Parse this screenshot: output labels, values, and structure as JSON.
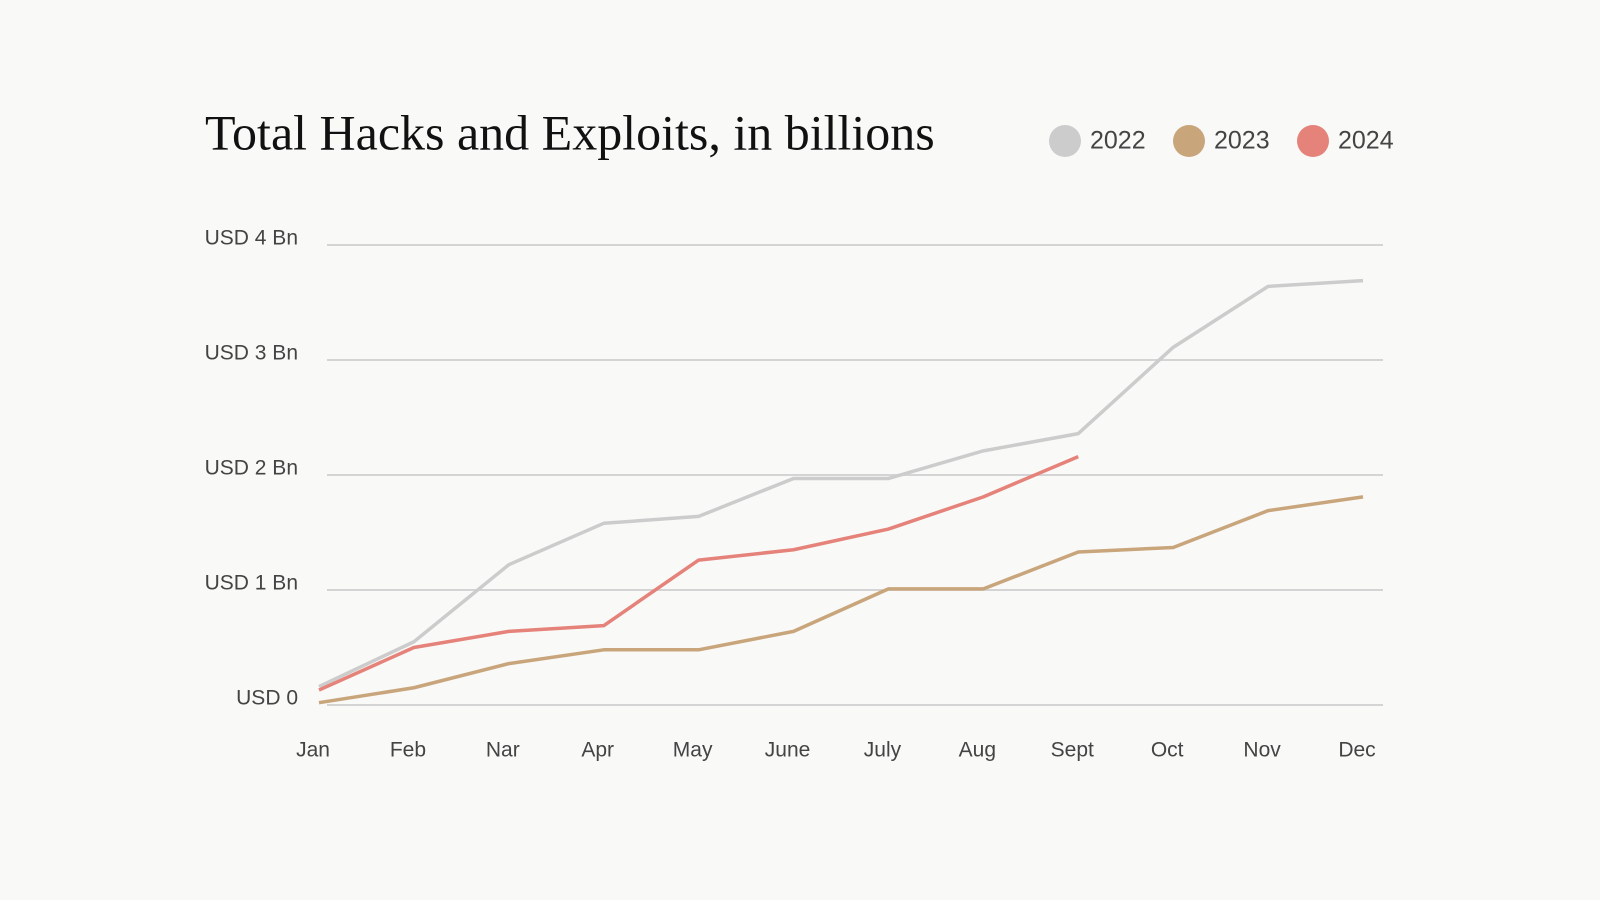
{
  "chart_data": {
    "type": "line",
    "title": "Total Hacks and Exploits, in billions",
    "categories": [
      "Jan",
      "Feb",
      "Nar",
      "Apr",
      "May",
      "June",
      "July",
      "Aug",
      "Sept",
      "Oct",
      "Nov",
      "Dec"
    ],
    "series": [
      {
        "name": "2022",
        "color": "#cccccc",
        "values": [
          0.16,
          0.55,
          1.22,
          1.58,
          1.64,
          1.97,
          1.97,
          2.21,
          2.36,
          3.11,
          3.64,
          3.69
        ]
      },
      {
        "name": "2023",
        "color": "#c9a57b",
        "values": [
          0.02,
          0.15,
          0.36,
          0.48,
          0.48,
          0.64,
          1.01,
          1.01,
          1.33,
          1.37,
          1.69,
          1.81
        ]
      },
      {
        "name": "2024",
        "color": "#e5827a",
        "values": [
          0.13,
          0.5,
          0.64,
          0.69,
          1.26,
          1.35,
          1.53,
          1.81,
          2.16,
          null,
          null,
          null
        ]
      }
    ],
    "ylim": [
      0,
      4
    ],
    "yticks": [
      {
        "value": 0,
        "label": "USD 0"
      },
      {
        "value": 1,
        "label": "USD 1 Bn"
      },
      {
        "value": 2,
        "label": "USD 2 Bn"
      },
      {
        "value": 3,
        "label": "USD 3 Bn"
      },
      {
        "value": 4,
        "label": "USD 4 Bn"
      }
    ],
    "grid": true
  }
}
